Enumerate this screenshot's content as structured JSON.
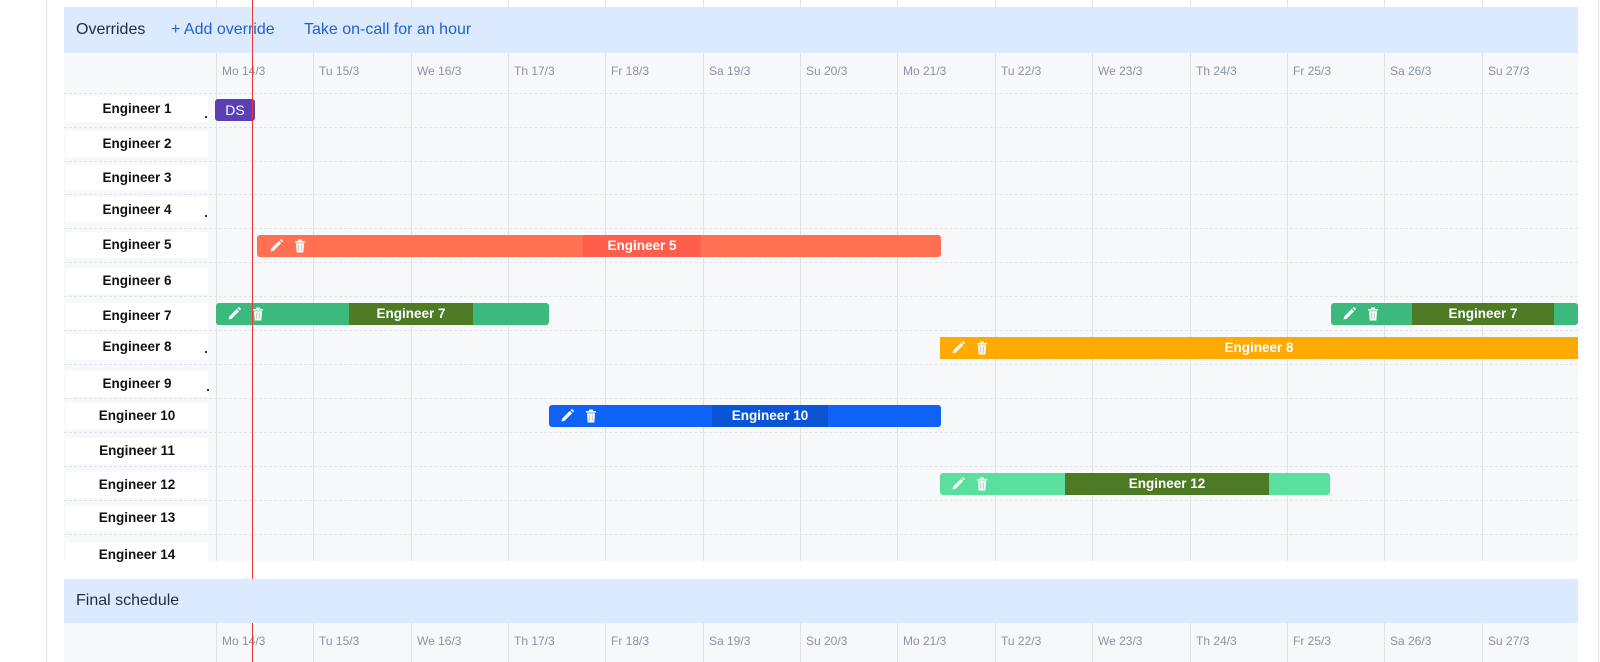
{
  "overrides_section": {
    "title": "Overrides",
    "add_override": "+ Add override",
    "take_oncall": "Take on-call for an hour"
  },
  "final_section": {
    "title": "Final schedule"
  },
  "days": [
    "Mo 14/3",
    "Tu 15/3",
    "We 16/3",
    "Th 17/3",
    "Fr 18/3",
    "Sa 19/3",
    "Su 20/3",
    "Mo 21/3",
    "Tu 22/3",
    "We 23/3",
    "Th 24/3",
    "Fr 25/3",
    "Sa 26/3",
    "Su 27/3"
  ],
  "engineers": [
    "Engineer 1",
    "Engineer 2",
    "Engineer 3",
    "Engineer 4",
    "Engineer 5",
    "Engineer 6",
    "Engineer 7",
    "Engineer 8",
    "Engineer 9",
    "Engineer 10",
    "Engineer 11",
    "Engineer 12",
    "Engineer 13",
    "Engineer 14"
  ],
  "current_user_badge": "DS",
  "overrides": [
    {
      "engineer": "Engineer 5",
      "label": "Engineer 5",
      "color": "#ff7152",
      "inner_color": "#ff5e4d"
    },
    {
      "engineer": "Engineer 7",
      "label": "Engineer 7",
      "color": "#3cb97d",
      "inner_color": "#4e7a26"
    },
    {
      "engineer": "Engineer 7",
      "label": "Engineer 7",
      "color": "#3cb97d",
      "inner_color": "#4e7a26"
    },
    {
      "engineer": "Engineer 8",
      "label": "Engineer 8",
      "color": "#ffaa00",
      "inner_color": "#ffaa00"
    },
    {
      "engineer": "Engineer 10",
      "label": "Engineer 10",
      "color": "#0e62f5",
      "inner_color": "#0a55d6"
    },
    {
      "engineer": "Engineer 12",
      "label": "Engineer 12",
      "color": "#5adf9e",
      "inner_color": "#4e7a26"
    }
  ],
  "icons": {
    "edit": "pencil-icon",
    "delete": "trash-icon"
  }
}
